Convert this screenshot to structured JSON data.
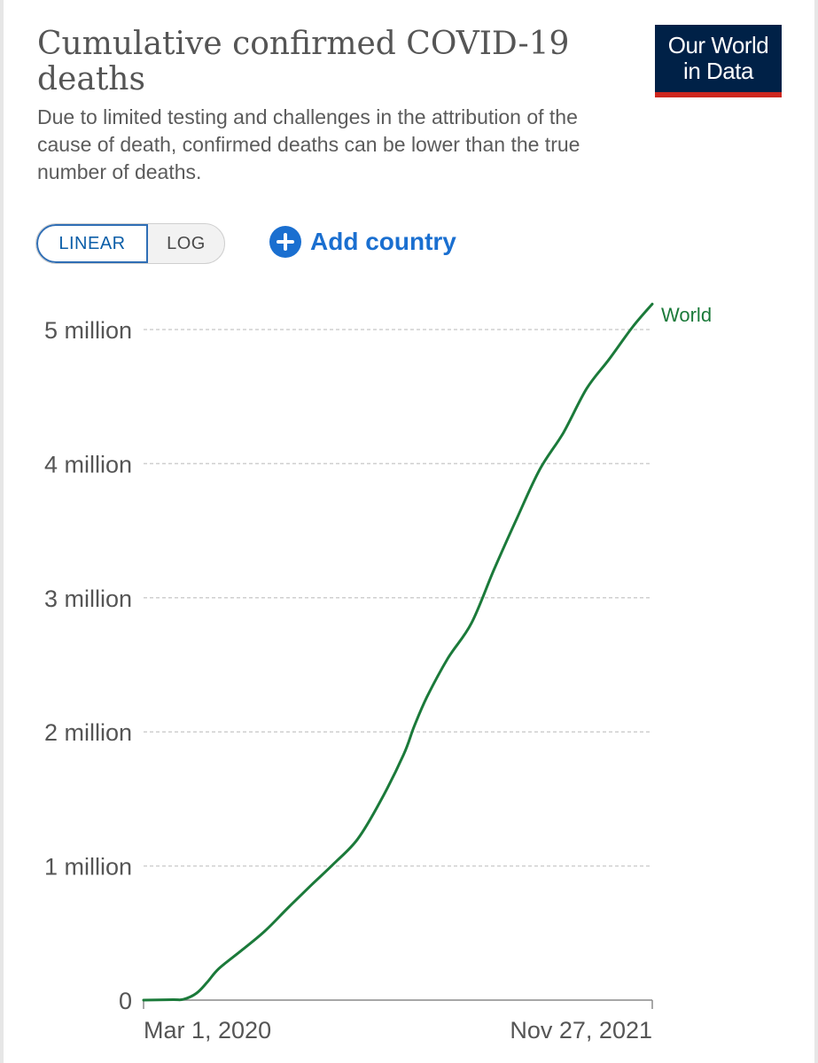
{
  "header": {
    "title": "Cumulative confirmed COVID-19 deaths",
    "subtitle": "Due to limited testing and challenges in the attribution of the cause of death, confirmed deaths can be lower than the true number of deaths.",
    "logo_line1": "Our World",
    "logo_line2": "in Data"
  },
  "controls": {
    "linear_label": "LINEAR",
    "log_label": "LOG",
    "add_country_label": "Add country",
    "selected_scale": "linear"
  },
  "colors": {
    "series": "#1b7a3a",
    "logo_bg": "#002147",
    "logo_accent": "#ce261e",
    "accent_blue": "#1a6fd0"
  },
  "chart_data": {
    "type": "line",
    "title": "Cumulative confirmed COVID-19 deaths",
    "xlabel": "",
    "ylabel": "",
    "x_tick_labels": [
      "Mar 1, 2020",
      "Nov 27, 2021"
    ],
    "y_tick_labels": [
      "0",
      "1 million",
      "2 million",
      "3 million",
      "4 million",
      "5 million"
    ],
    "y_ticks": [
      0,
      1000000,
      2000000,
      3000000,
      4000000,
      5000000
    ],
    "ylim": [
      0,
      5200000
    ],
    "xlim": [
      "2020-01-22",
      "2021-11-27"
    ],
    "grid": "horizontal dashed",
    "series": [
      {
        "name": "World",
        "x": [
          "2020-01-22",
          "2020-03-01",
          "2020-03-15",
          "2020-04-01",
          "2020-04-15",
          "2020-05-01",
          "2020-06-01",
          "2020-07-01",
          "2020-08-01",
          "2020-09-01",
          "2020-10-01",
          "2020-11-01",
          "2020-12-01",
          "2021-01-01",
          "2021-01-15",
          "2021-02-01",
          "2021-03-01",
          "2021-04-01",
          "2021-05-01",
          "2021-06-01",
          "2021-07-01",
          "2021-08-01",
          "2021-09-01",
          "2021-10-01",
          "2021-11-01",
          "2021-11-27"
        ],
        "values": [
          0,
          3000,
          6000,
          50000,
          130000,
          235000,
          375000,
          515000,
          690000,
          860000,
          1020000,
          1200000,
          1480000,
          1830000,
          2040000,
          2260000,
          2550000,
          2810000,
          3210000,
          3600000,
          3960000,
          4230000,
          4560000,
          4780000,
          5020000,
          5190000
        ]
      }
    ]
  }
}
